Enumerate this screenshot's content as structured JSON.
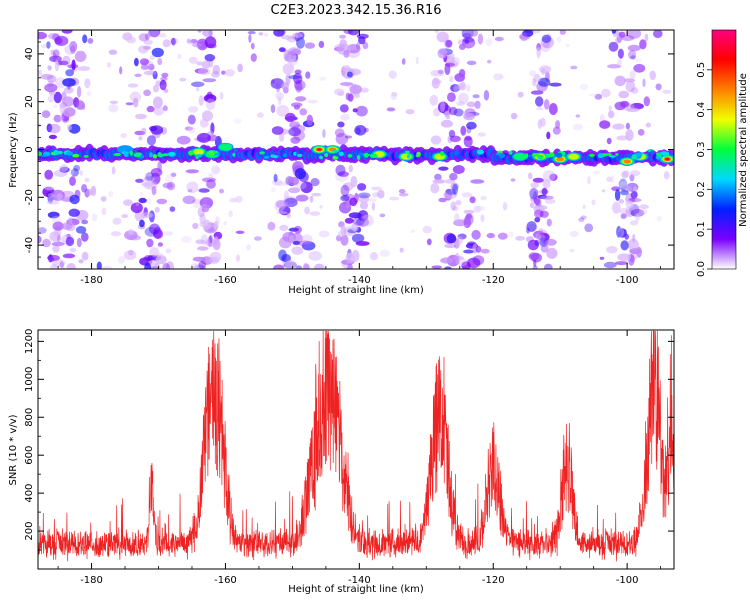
{
  "figure": {
    "title": "C2E3.2023.342.15.36.R16"
  },
  "chart_data": [
    {
      "type": "heatmap",
      "xlabel": "Height of straight line (km)",
      "ylabel": "Frequency (Hz)",
      "xlim": [
        -188,
        -93
      ],
      "ylim": [
        -50,
        50
      ],
      "xticks": [
        -180,
        -160,
        -140,
        -120,
        -100
      ],
      "yticks": [
        -40,
        -20,
        0,
        20,
        40
      ],
      "colorbar": {
        "label": "Normalized spectral amplitude",
        "range": [
          0,
          0.6
        ],
        "ticks": [
          "0.0",
          "0.1",
          "0.2",
          "0.3",
          "0.4",
          "0.5"
        ],
        "colors": [
          "#ffffff",
          "#7a00ff",
          "#0020ff",
          "#00d8ff",
          "#00ff3c",
          "#f0ff00",
          "#ff8000",
          "#ff0000",
          "#ff0080"
        ]
      },
      "band": {
        "center_hz": -2,
        "halfwidth_hz": 4
      },
      "peaks": [
        {
          "x": -175,
          "y": 0,
          "value": 0.25
        },
        {
          "x": -164,
          "y": -1,
          "value": 0.42
        },
        {
          "x": -162,
          "y": -2,
          "value": 0.35
        },
        {
          "x": -160,
          "y": 1,
          "value": 0.3
        },
        {
          "x": -146,
          "y": 0,
          "value": 0.55
        },
        {
          "x": -144,
          "y": 0,
          "value": 0.48
        },
        {
          "x": -137,
          "y": -2,
          "value": 0.38
        },
        {
          "x": -133,
          "y": -3,
          "value": 0.4
        },
        {
          "x": -128,
          "y": -3,
          "value": 0.42
        },
        {
          "x": -116,
          "y": -3,
          "value": 0.33
        },
        {
          "x": -113,
          "y": -3,
          "value": 0.4
        },
        {
          "x": -110,
          "y": -4,
          "value": 0.45
        },
        {
          "x": -108,
          "y": -3,
          "value": 0.38
        },
        {
          "x": -100,
          "y": -5,
          "value": 0.52
        },
        {
          "x": -98,
          "y": -3,
          "value": 0.44
        },
        {
          "x": -94,
          "y": -4,
          "value": 0.55
        }
      ],
      "noise_columns": [
        {
          "x": -184,
          "width_km": 7,
          "density": 1.0
        },
        {
          "x": -171,
          "width_km": 6,
          "density": 0.8
        },
        {
          "x": -163,
          "width_km": 5,
          "density": 0.6
        },
        {
          "x": -150,
          "width_km": 6,
          "density": 0.9
        },
        {
          "x": -141,
          "width_km": 4,
          "density": 0.7
        },
        {
          "x": -125,
          "width_km": 7,
          "density": 1.0
        },
        {
          "x": -113,
          "width_km": 5,
          "density": 0.6
        },
        {
          "x": -100,
          "width_km": 6,
          "density": 0.7
        }
      ]
    },
    {
      "type": "line",
      "xlabel": "Height of straight line (km)",
      "ylabel": "SNR (10 * v/v)",
      "xlim": [
        -188,
        -93
      ],
      "ylim": [
        0,
        1260
      ],
      "xticks": [
        -180,
        -160,
        -140,
        -120,
        -100
      ],
      "yticks": [
        200,
        400,
        600,
        800,
        1000,
        1200
      ],
      "color": "#ee2222",
      "baseline": 160,
      "noise_amplitude": 140,
      "peaks": [
        {
          "x": -171,
          "value": 540,
          "width_km": 0.3
        },
        {
          "x": -162,
          "value": 1090,
          "width_km": 1.2
        },
        {
          "x": -161,
          "value": 950,
          "width_km": 1.0
        },
        {
          "x": -145,
          "value": 1150,
          "width_km": 1.8
        },
        {
          "x": -144,
          "value": 1050,
          "width_km": 1.5
        },
        {
          "x": -128,
          "value": 1000,
          "width_km": 1.2
        },
        {
          "x": -120,
          "value": 640,
          "width_km": 1.0
        },
        {
          "x": -109,
          "value": 680,
          "width_km": 0.8
        },
        {
          "x": -96,
          "value": 1240,
          "width_km": 1.0
        },
        {
          "x": -93.5,
          "value": 900,
          "width_km": 0.6
        }
      ]
    }
  ]
}
